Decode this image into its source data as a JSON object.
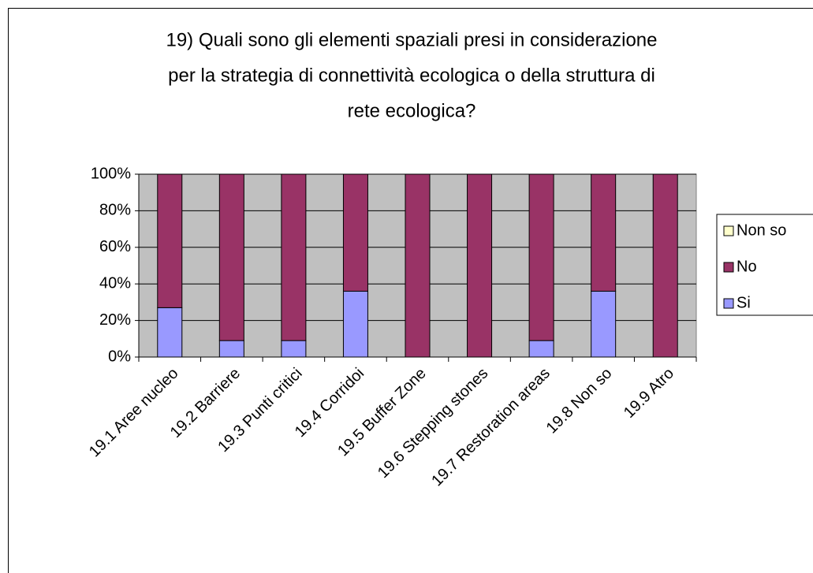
{
  "chart_data": {
    "type": "stacked_bar_percent",
    "title": [
      "19) Quali sono gli elementi spaziali presi in considerazione",
      "per la strategia di connettività ecologica o della struttura di",
      "rete ecologica?"
    ],
    "categories": [
      "19.1 Aree nucleo",
      "19.2 Barriere",
      "19.3 Punti critici",
      "19.4 Corridoi",
      "19.5 Buffer Zone",
      "19.6 Stepping stones",
      "19.7 Restoration areas",
      "19.8  Non so",
      "19.9  Atro"
    ],
    "series": [
      {
        "name": "Si",
        "color": "#9999ff",
        "values": [
          27,
          9,
          9,
          36,
          0,
          0,
          9,
          36,
          0
        ]
      },
      {
        "name": "No",
        "color": "#993366",
        "values": [
          73,
          91,
          91,
          64,
          100,
          100,
          91,
          64,
          100
        ]
      },
      {
        "name": "Non so",
        "color": "#ffffcc",
        "values": [
          0,
          0,
          0,
          0,
          0,
          0,
          0,
          0,
          0
        ]
      }
    ],
    "ylim": [
      0,
      100
    ],
    "yticks": [
      {
        "value": 0,
        "label": "0%"
      },
      {
        "value": 20,
        "label": "20%"
      },
      {
        "value": 40,
        "label": "40%"
      },
      {
        "value": 60,
        "label": "60%"
      },
      {
        "value": 80,
        "label": "80%"
      },
      {
        "value": 100,
        "label": "100%"
      }
    ],
    "grid": true,
    "legend": "right",
    "plot_background": "#c0c0c0"
  }
}
